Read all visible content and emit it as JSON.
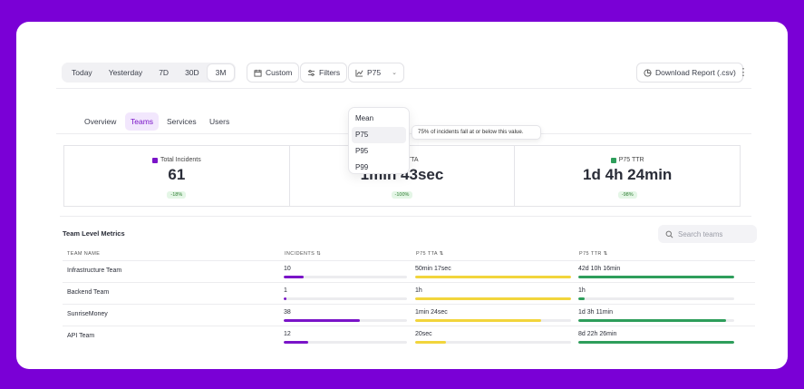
{
  "toolbar": {
    "ranges": [
      "Today",
      "Yesterday",
      "7D",
      "30D",
      "3M"
    ],
    "active_range": "3M",
    "custom_label": "Custom",
    "filters_label": "Filters",
    "percentile_label": "P75",
    "download_label": "Download Report (.csv)"
  },
  "tabs": [
    "Overview",
    "Teams",
    "Services",
    "Users"
  ],
  "active_tab": "Teams",
  "stats": [
    {
      "label": "Total Incidents",
      "value": "61",
      "delta": "-18%",
      "color": "#7a14c8"
    },
    {
      "label": "P75 TTA",
      "value": "1min 43sec",
      "delta": "-100%",
      "color": "#7a14c8"
    },
    {
      "label": "P75 TTR",
      "value": "1d 4h 24min",
      "delta": "-98%",
      "color": "#2e9e5b"
    }
  ],
  "metrics": {
    "title": "Team Level Metrics",
    "search_placeholder": "Search teams",
    "columns": [
      "Team Name",
      "Incidents ⇅",
      "P75 TTA ⇅",
      "P75 TTR ⇅"
    ],
    "rows": [
      {
        "name": "Infrastructure Team",
        "incidents": "10",
        "incidents_frac": 0.16,
        "tta": "50min 17sec",
        "tta_frac": 1.0,
        "ttr": "42d 10h 16min",
        "ttr_frac": 1.0
      },
      {
        "name": "Backend Team",
        "incidents": "1",
        "incidents_frac": 0.02,
        "tta": "1h",
        "tta_frac": 1.0,
        "ttr": "1h",
        "ttr_frac": 0.04
      },
      {
        "name": "SunriseMoney",
        "incidents": "38",
        "incidents_frac": 0.62,
        "tta": "1min 24sec",
        "tta_frac": 0.81,
        "ttr": "1d 3h 11min",
        "ttr_frac": 0.95
      },
      {
        "name": "API Team",
        "incidents": "12",
        "incidents_frac": 0.2,
        "tta": "20sec",
        "tta_frac": 0.2,
        "ttr": "8d 22h 26min",
        "ttr_frac": 1.0
      }
    ],
    "colors": {
      "incidents": "#7a14c8",
      "tta": "#f2d53c",
      "ttr": "#2e9e5b"
    }
  },
  "dropdown": {
    "options": [
      "Mean",
      "P75",
      "P95",
      "P99"
    ],
    "hovered": "P75",
    "tooltip": "75% of incidents fall at or below this value."
  }
}
